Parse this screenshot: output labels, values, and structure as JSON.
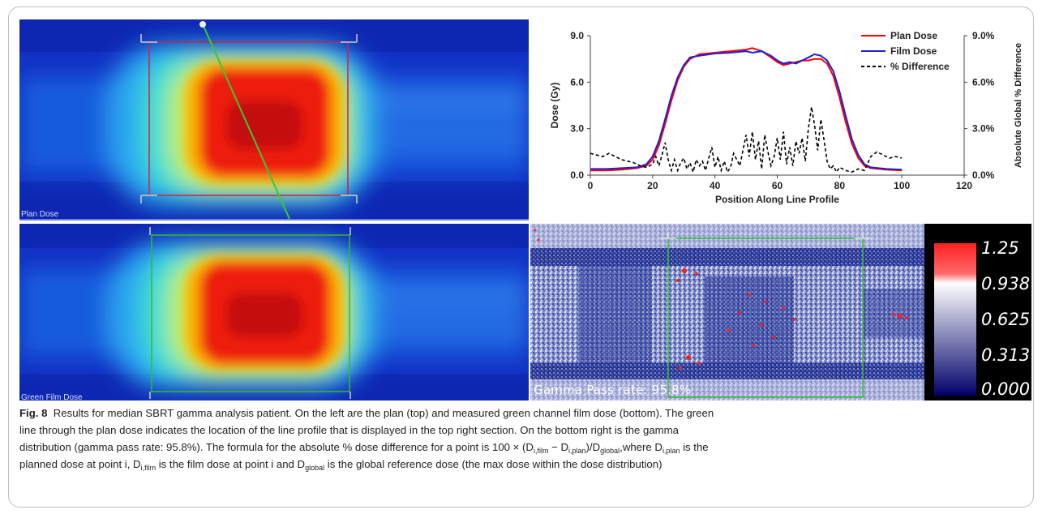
{
  "panels": {
    "plan_label": "Plan Dose",
    "film_label": "Green Film Dose",
    "gamma_pass_text": "Gamma Pass rate: 95.8%"
  },
  "colorbar": {
    "labels": [
      "1.25",
      "0.938",
      "0.625",
      "0.313",
      "0.000"
    ]
  },
  "caption": {
    "fig_label": "Fig. 8",
    "line1": "Results for median SBRT gamma analysis patient. On the left are the plan (top) and measured green channel film dose (bottom). The green",
    "line2": "line through the plan dose indicates the location of the line profile that is displayed in the top right section. On the bottom right is the gamma",
    "line3_a": "distribution (gamma pass rate: 95.8%). The formula for the absolute % dose difference for a point is 100 × (D",
    "sub_ifilm": "i,film",
    "minus": " − D",
    "sub_iplan": "i,plan",
    "slash_d": ")/D",
    "sub_global": "global",
    "line3_b": ",where D",
    "line3_c": " is the",
    "line4_a": "planned dose at point i, D",
    "line4_b": " is the film dose at point i and D",
    "line4_c": " is the global reference dose (the max dose within the dose distribution)"
  },
  "chart_data": {
    "type": "line",
    "xlabel": "Position Along Line Profile",
    "ylabel": "Dose (Gy)",
    "y2label": "Absolute Global % Difference",
    "xlim": [
      0,
      120
    ],
    "ylim": [
      0,
      9
    ],
    "y2lim": [
      0,
      9
    ],
    "xticks": [
      "0",
      "20",
      "40",
      "60",
      "80",
      "100",
      "120"
    ],
    "yticks": [
      "0.0",
      "3.0",
      "6.0",
      "9.0"
    ],
    "y2ticks": [
      "0.0%",
      "3.0%",
      "6.0%",
      "9.0%"
    ],
    "legend_position": "top-right",
    "series": [
      {
        "name": "Plan Dose",
        "color": "#ff0000",
        "axis": "left",
        "x": [
          0,
          5,
          10,
          15,
          18,
          20,
          22,
          24,
          26,
          28,
          30,
          32,
          35,
          40,
          45,
          50,
          52,
          55,
          58,
          60,
          62,
          64,
          66,
          68,
          70,
          72,
          74,
          76,
          78,
          80,
          82,
          84,
          86,
          88,
          90,
          95,
          100
        ],
        "y": [
          0.3,
          0.3,
          0.35,
          0.45,
          0.6,
          1.0,
          1.9,
          3.3,
          4.8,
          6.1,
          7.0,
          7.5,
          7.8,
          7.9,
          8.0,
          8.1,
          8.2,
          8.0,
          7.6,
          7.3,
          7.1,
          7.2,
          7.3,
          7.4,
          7.4,
          7.5,
          7.5,
          7.2,
          6.4,
          5.0,
          3.4,
          2.0,
          1.1,
          0.6,
          0.45,
          0.35,
          0.3
        ]
      },
      {
        "name": "Film Dose",
        "color": "#1f1fd6",
        "axis": "left",
        "x": [
          0,
          5,
          10,
          15,
          18,
          20,
          22,
          24,
          26,
          28,
          30,
          32,
          35,
          40,
          45,
          50,
          52,
          55,
          58,
          60,
          62,
          64,
          66,
          68,
          70,
          72,
          74,
          76,
          78,
          80,
          82,
          84,
          86,
          88,
          90,
          95,
          100
        ],
        "y": [
          0.4,
          0.4,
          0.45,
          0.5,
          0.7,
          1.2,
          2.2,
          3.6,
          5.1,
          6.3,
          7.1,
          7.6,
          7.7,
          7.85,
          7.9,
          8.0,
          7.9,
          8.0,
          7.7,
          7.4,
          7.2,
          7.3,
          7.2,
          7.4,
          7.6,
          7.8,
          7.7,
          7.4,
          6.7,
          5.4,
          3.8,
          2.3,
          1.3,
          0.7,
          0.5,
          0.4,
          0.35
        ]
      },
      {
        "name": "% Difference",
        "color": "#000000",
        "axis": "right",
        "dashed": true,
        "x": [
          0,
          2,
          4,
          6,
          8,
          10,
          12,
          14,
          16,
          18,
          20,
          21,
          22,
          23,
          24,
          25,
          26,
          27,
          28,
          29,
          30,
          31,
          32,
          33,
          34,
          35,
          36,
          37,
          38,
          39,
          40,
          41,
          42,
          43,
          44,
          45,
          46,
          47,
          48,
          49,
          50,
          51,
          52,
          53,
          54,
          55,
          56,
          57,
          58,
          59,
          60,
          61,
          62,
          63,
          64,
          65,
          66,
          67,
          68,
          69,
          70,
          71,
          72,
          73,
          74,
          75,
          76,
          77,
          78,
          79,
          80,
          82,
          84,
          86,
          88,
          90,
          92,
          94,
          96,
          98,
          100
        ],
        "y": [
          1.4,
          1.3,
          1.2,
          1.4,
          1.2,
          1.0,
          0.9,
          0.8,
          0.6,
          0.5,
          0.7,
          1.2,
          0.6,
          1.3,
          2.1,
          1.0,
          0.3,
          1.0,
          0.3,
          0.8,
          1.1,
          0.4,
          0.8,
          0.2,
          1.0,
          0.6,
          0.9,
          0.3,
          1.1,
          1.8,
          0.5,
          1.2,
          0.3,
          0.9,
          0.2,
          0.5,
          1.4,
          1.0,
          0.6,
          1.6,
          2.6,
          1.2,
          2.8,
          1.0,
          2.2,
          0.4,
          2.6,
          1.5,
          0.6,
          1.2,
          2.4,
          1.0,
          2.8,
          0.7,
          1.8,
          0.6,
          2.2,
          1.4,
          2.4,
          0.9,
          3.0,
          4.4,
          3.2,
          1.6,
          3.6,
          2.3,
          0.9,
          0.4,
          0.6,
          0.2,
          0.5,
          0.3,
          0.2,
          0.4,
          0.3,
          1.2,
          1.5,
          1.3,
          1.1,
          1.2,
          1.1
        ]
      }
    ]
  }
}
